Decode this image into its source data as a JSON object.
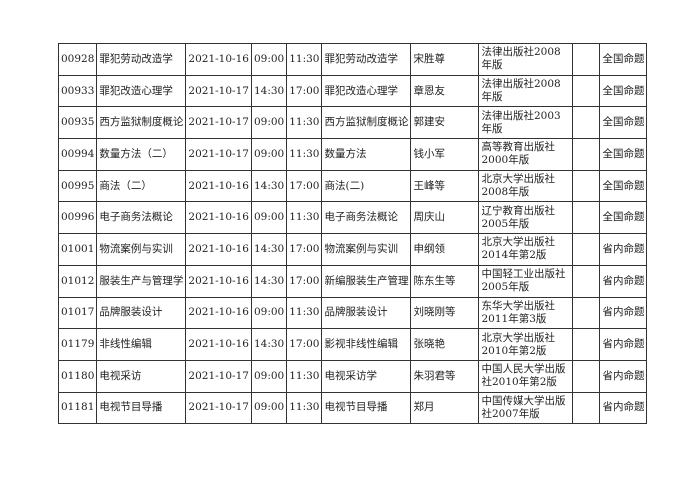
{
  "rows": [
    {
      "code": "00928",
      "course": "罪犯劳动改造学",
      "date": "2021-10-16",
      "start": "09:00",
      "end": "11:30",
      "textbook": "罪犯劳动改造学",
      "author": "宋胜尊",
      "publisher": "法律出版社2008年版",
      "note": "",
      "type": "全国命题"
    },
    {
      "code": "00933",
      "course": "罪犯改造心理学",
      "date": "2021-10-17",
      "start": "14:30",
      "end": "17:00",
      "textbook": "罪犯改造心理学",
      "author": "章恩友",
      "publisher": "法律出版社2008年版",
      "note": "",
      "type": "全国命题"
    },
    {
      "code": "00935",
      "course": "西方监狱制度概论",
      "date": "2021-10-17",
      "start": "09:00",
      "end": "11:30",
      "textbook": "西方监狱制度概论",
      "author": "郭建安",
      "publisher": "法律出版社2003年版",
      "note": "",
      "type": "全国命题"
    },
    {
      "code": "00994",
      "course": "数量方法（二）",
      "date": "2021-10-17",
      "start": "09:00",
      "end": "11:30",
      "textbook": "数量方法",
      "author": "钱小军",
      "publisher": "高等教育出版社2000年版",
      "note": "",
      "type": "全国命题"
    },
    {
      "code": "00995",
      "course": "商法（二）",
      "date": "2021-10-16",
      "start": "14:30",
      "end": "17:00",
      "textbook": "商法(二)",
      "author": "王峰等",
      "publisher": "北京大学出版社2008年版",
      "note": "",
      "type": "全国命题"
    },
    {
      "code": "00996",
      "course": "电子商务法概论",
      "date": "2021-10-16",
      "start": "09:00",
      "end": "11:30",
      "textbook": "电子商务法概论",
      "author": "周庆山",
      "publisher": "辽宁教育出版社2005年版",
      "note": "",
      "type": "全国命题"
    },
    {
      "code": "01001",
      "course": "物流案例与实训",
      "date": "2021-10-16",
      "start": "14:30",
      "end": "17:00",
      "textbook": "物流案例与实训",
      "author": "申纲领",
      "publisher": "北京大学出版社2014年第2版",
      "note": "",
      "type": "省内命题"
    },
    {
      "code": "01012",
      "course": "服装生产与管理学",
      "date": "2021-10-16",
      "start": "14:30",
      "end": "17:00",
      "textbook": "新编服装生产管理",
      "author": "陈东生等",
      "publisher": "中国轻工业出版社2005年版",
      "note": "",
      "type": "省内命题"
    },
    {
      "code": "01017",
      "course": "品牌服装设计",
      "date": "2021-10-16",
      "start": "09:00",
      "end": "11:30",
      "textbook": "品牌服装设计",
      "author": "刘晓刚等",
      "publisher": "东华大学出版社2011年第3版",
      "note": "",
      "type": "省内命题"
    },
    {
      "code": "01179",
      "course": "非线性编辑",
      "date": "2021-10-16",
      "start": "14:30",
      "end": "17:00",
      "textbook": "影视非线性编辑",
      "author": "张晓艳",
      "publisher": "北京大学出版社2010年第2版",
      "note": "",
      "type": "省内命题"
    },
    {
      "code": "01180",
      "course": "电视采访",
      "date": "2021-10-17",
      "start": "09:00",
      "end": "11:30",
      "textbook": "电视采访学",
      "author": "朱羽君等",
      "publisher": "中国人民大学出版社2010年第2版",
      "note": "",
      "type": "省内命题"
    },
    {
      "code": "01181",
      "course": "电视节目导播",
      "date": "2021-10-17",
      "start": "09:00",
      "end": "11:30",
      "textbook": "电视节目导播",
      "author": "郑月",
      "publisher": "中国传媒大学出版社2007年版",
      "note": "",
      "type": "省内命题"
    }
  ]
}
